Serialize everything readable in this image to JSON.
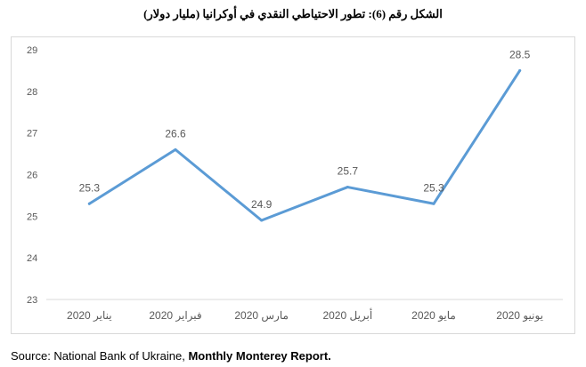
{
  "chart_data": {
    "type": "line",
    "title": "الشكل رقم (6): تطور الاحتياطي النقدي في أوكرانيا (مليار دولار)",
    "categories": [
      "يناير 2020",
      "فبراير 2020",
      "مارس 2020",
      "أبريل 2020",
      "مايو 2020",
      "يونيو 2020"
    ],
    "series": [
      {
        "values": [
          25.3,
          26.6,
          24.9,
          25.7,
          25.3,
          28.5
        ],
        "data_labels": [
          "25.3",
          "26.6",
          "24.9",
          "25.7",
          "25.3",
          "28.5"
        ],
        "color": "#5b9bd5"
      }
    ],
    "ylim": [
      23,
      29
    ],
    "yticks": [
      "23",
      "24",
      "25",
      "26",
      "27",
      "28",
      "29"
    ],
    "grid": false,
    "legend": "none"
  },
  "source": {
    "prefix": "Source: National Bank of Ukraine, ",
    "emphasis": "Monthly Monterey Report."
  },
  "colors": {
    "line": "#5b9bd5",
    "tick_text": "#595959",
    "frame": "#d9d9d9",
    "axis": "#d9d9d9"
  }
}
